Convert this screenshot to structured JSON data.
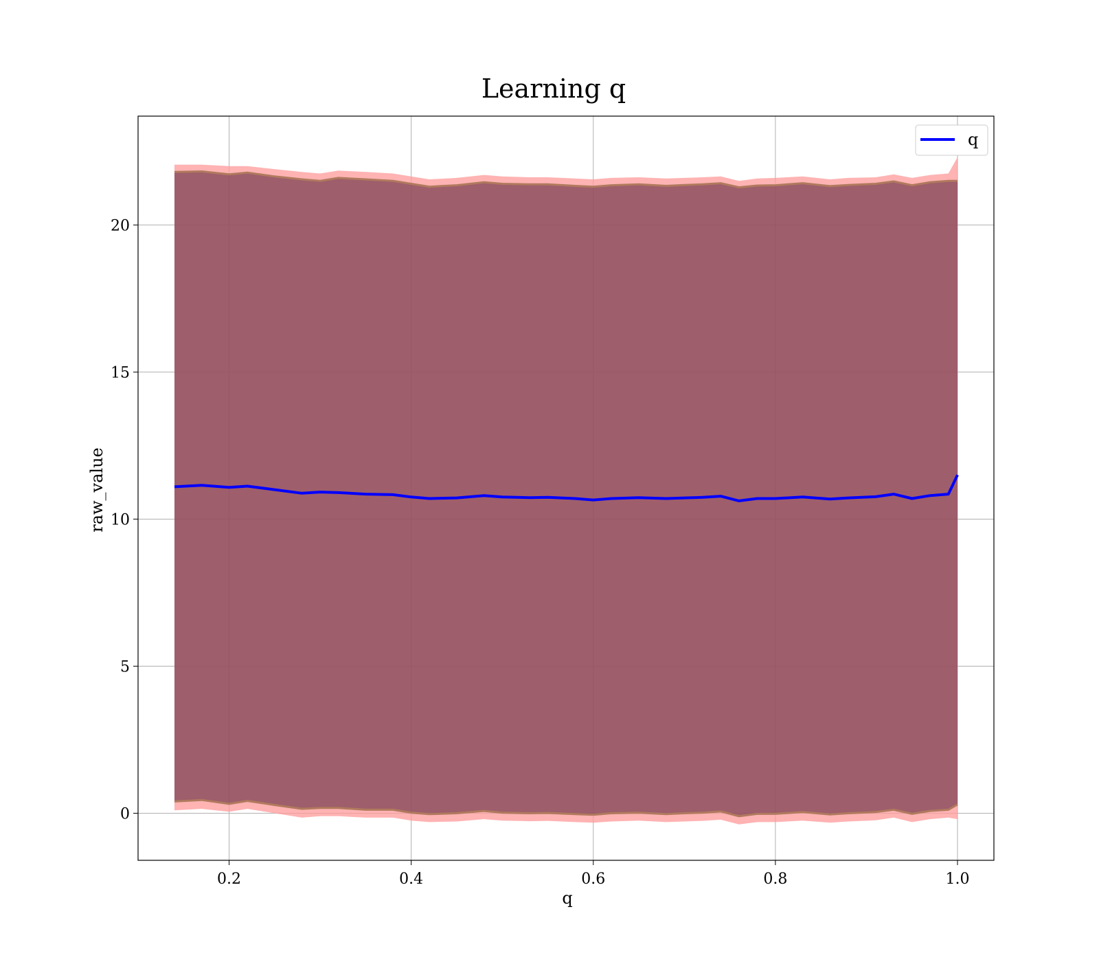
{
  "chart_data": {
    "type": "area",
    "title": "Learning q",
    "xlabel": "q",
    "ylabel": "raw_value",
    "xlim": [
      0.1,
      1.04
    ],
    "ylim": [
      -1.6,
      23.7
    ],
    "xticks": [
      0.2,
      0.4,
      0.6,
      0.8,
      1.0
    ],
    "xtick_labels": [
      "0.2",
      "0.4",
      "0.6",
      "0.8",
      "1.0"
    ],
    "yticks": [
      0,
      5,
      10,
      15,
      20
    ],
    "ytick_labels": [
      "0",
      "5",
      "10",
      "15",
      "20"
    ],
    "grid": true,
    "legend": {
      "position": "top-right",
      "entries": [
        "q"
      ]
    },
    "colors": {
      "line": "#0000ff",
      "outer_band": "#ff9999",
      "inner_band": "#7a3d4f",
      "band_edge": "#b07a5e"
    },
    "x": [
      0.14,
      0.17,
      0.2,
      0.22,
      0.25,
      0.28,
      0.3,
      0.32,
      0.35,
      0.38,
      0.4,
      0.42,
      0.45,
      0.48,
      0.5,
      0.53,
      0.55,
      0.58,
      0.6,
      0.62,
      0.65,
      0.68,
      0.7,
      0.72,
      0.74,
      0.76,
      0.78,
      0.8,
      0.83,
      0.86,
      0.88,
      0.91,
      0.93,
      0.95,
      0.97,
      0.99,
      1.0
    ],
    "series": [
      {
        "name": "q",
        "values": [
          11.1,
          11.15,
          11.08,
          11.12,
          11.0,
          10.88,
          10.92,
          10.9,
          10.85,
          10.83,
          10.75,
          10.7,
          10.72,
          10.8,
          10.75,
          10.73,
          10.74,
          10.7,
          10.65,
          10.7,
          10.73,
          10.7,
          10.72,
          10.74,
          10.78,
          10.62,
          10.7,
          10.7,
          10.75,
          10.68,
          10.72,
          10.76,
          10.85,
          10.7,
          10.8,
          10.85,
          11.5
        ]
      }
    ],
    "outer_band": {
      "upper": [
        22.05,
        22.05,
        22.0,
        22.0,
        21.9,
        21.8,
        21.75,
        21.85,
        21.8,
        21.75,
        21.65,
        21.55,
        21.6,
        21.7,
        21.65,
        21.62,
        21.62,
        21.58,
        21.55,
        21.6,
        21.62,
        21.58,
        21.6,
        21.62,
        21.65,
        21.5,
        21.58,
        21.6,
        21.65,
        21.55,
        21.6,
        21.62,
        21.72,
        21.6,
        21.7,
        21.75,
        22.3
      ],
      "lower": [
        0.1,
        0.15,
        0.05,
        0.15,
        0.0,
        -0.15,
        -0.1,
        -0.1,
        -0.15,
        -0.15,
        -0.25,
        -0.3,
        -0.28,
        -0.2,
        -0.25,
        -0.27,
        -0.26,
        -0.3,
        -0.32,
        -0.28,
        -0.25,
        -0.3,
        -0.28,
        -0.26,
        -0.22,
        -0.38,
        -0.3,
        -0.3,
        -0.25,
        -0.32,
        -0.28,
        -0.24,
        -0.15,
        -0.3,
        -0.2,
        -0.15,
        -0.2
      ]
    },
    "inner_band": {
      "upper": [
        21.8,
        21.82,
        21.72,
        21.78,
        21.65,
        21.55,
        21.5,
        21.6,
        21.55,
        21.5,
        21.4,
        21.3,
        21.35,
        21.45,
        21.4,
        21.38,
        21.38,
        21.33,
        21.3,
        21.35,
        21.38,
        21.33,
        21.36,
        21.38,
        21.42,
        21.28,
        21.34,
        21.35,
        21.42,
        21.32,
        21.36,
        21.4,
        21.48,
        21.35,
        21.45,
        21.5,
        21.5
      ],
      "lower": [
        0.4,
        0.45,
        0.32,
        0.42,
        0.28,
        0.15,
        0.18,
        0.18,
        0.12,
        0.12,
        0.02,
        -0.03,
        0.0,
        0.08,
        0.02,
        0.0,
        0.01,
        -0.03,
        -0.05,
        0.0,
        0.02,
        -0.03,
        0.0,
        0.02,
        0.06,
        -0.1,
        -0.02,
        -0.02,
        0.04,
        -0.04,
        0.0,
        0.04,
        0.12,
        -0.02,
        0.08,
        0.12,
        0.3
      ]
    }
  }
}
